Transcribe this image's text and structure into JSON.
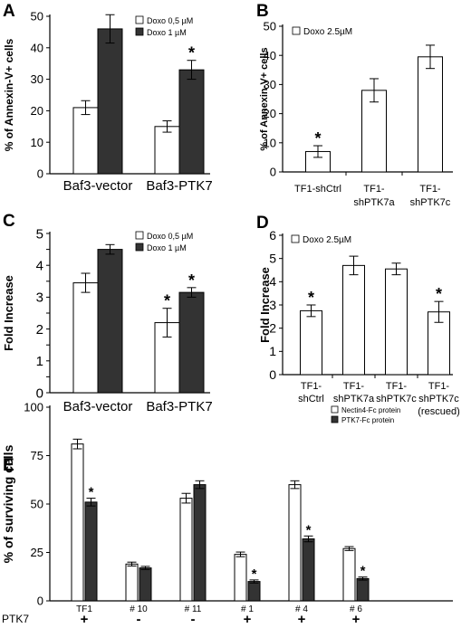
{
  "chart_data": [
    {
      "panel": "A",
      "type": "bar",
      "ylabel": "% of Annexin-V+ cells",
      "ylim": [
        0,
        50
      ],
      "yticks": [
        0,
        10,
        20,
        30,
        40,
        50
      ],
      "categories": [
        "Baf3-vector",
        "Baf3-PTK7"
      ],
      "series": [
        {
          "name": "Doxo 0,5 µM",
          "fill": "#ffffff",
          "values": [
            21,
            15
          ],
          "errors": [
            2.2,
            1.8
          ]
        },
        {
          "name": "Doxo 1 µM",
          "fill": "#333333",
          "values": [
            46,
            33
          ],
          "errors": [
            4.5,
            3
          ]
        }
      ],
      "stars": [
        {
          "series": 1,
          "index": 1,
          "text": "*"
        }
      ],
      "legend": "top-right"
    },
    {
      "panel": "B",
      "type": "bar",
      "ylabel": "% of Annexin-V+ cells",
      "ylim": [
        0,
        50
      ],
      "yticks": [
        0,
        10,
        20,
        30,
        40,
        50
      ],
      "categories": [
        [
          "TF1-shCtrl"
        ],
        [
          "TF1-",
          "shPTK7a"
        ],
        [
          "TF1-",
          "shPTK7c"
        ]
      ],
      "series": [
        {
          "name": "Doxo 2.5µM",
          "fill": "#ffffff",
          "values": [
            7,
            28,
            39.5
          ],
          "errors": [
            2,
            4,
            4
          ]
        }
      ],
      "stars": [
        {
          "series": 0,
          "index": 0,
          "text": "*"
        }
      ],
      "legend": "top-left"
    },
    {
      "panel": "C",
      "type": "bar",
      "ylabel": "Fold Increase",
      "ylim": [
        0,
        5
      ],
      "yticks": [
        0,
        0.5,
        1,
        1.5,
        2,
        2.5,
        3,
        3.5,
        4,
        4.5,
        5
      ],
      "ytick_labels": [
        "0",
        "",
        "1",
        "",
        "2",
        "",
        "3",
        "",
        "4",
        "",
        "5"
      ],
      "categories": [
        "Baf3-vector",
        "Baf3-PTK7"
      ],
      "series": [
        {
          "name": "Doxo 0,5 µM",
          "fill": "#ffffff",
          "values": [
            3.45,
            2.2
          ],
          "errors": [
            0.3,
            0.45
          ]
        },
        {
          "name": "Doxo 1 µM",
          "fill": "#333333",
          "values": [
            4.5,
            3.15
          ],
          "errors": [
            0.15,
            0.15
          ]
        }
      ],
      "stars": [
        {
          "series": 0,
          "index": 1,
          "text": "*"
        },
        {
          "series": 1,
          "index": 1,
          "text": "*"
        }
      ],
      "legend": "top-right"
    },
    {
      "panel": "D",
      "type": "bar",
      "ylabel": "Fold Increase",
      "ylim": [
        0,
        6
      ],
      "yticks": [
        0,
        1,
        2,
        3,
        4,
        5,
        6
      ],
      "categories": [
        [
          "TF1-",
          "shCtrl"
        ],
        [
          "TF1-",
          "shPTK7a"
        ],
        [
          "TF1-",
          "shPTK7c"
        ],
        [
          "TF1-",
          "shPTK7c",
          "(rescued)"
        ]
      ],
      "series": [
        {
          "name": "Doxo 2.5µM",
          "fill": "#ffffff",
          "values": [
            2.75,
            4.7,
            4.55,
            2.7
          ],
          "errors": [
            0.25,
            0.4,
            0.25,
            0.45
          ]
        }
      ],
      "stars": [
        {
          "series": 0,
          "index": 0,
          "text": "*"
        },
        {
          "series": 0,
          "index": 3,
          "text": "*"
        }
      ],
      "legend": "top-left"
    },
    {
      "panel": "E",
      "type": "bar",
      "ylabel": "% of surviving cells",
      "ylim": [
        0,
        100
      ],
      "yticks": [
        0,
        25,
        50,
        75,
        100
      ],
      "categories": [
        "TF1",
        "# 10",
        "# 11",
        "# 1",
        "# 4",
        "# 6"
      ],
      "row_label": "PTK7",
      "row_values": [
        "+",
        "-",
        "-",
        "+",
        "+",
        "+"
      ],
      "series": [
        {
          "name": "Nectin4-Fc protein",
          "fill": "#ffffff",
          "values": [
            81,
            19,
            53,
            24,
            60,
            27
          ],
          "errors": [
            2.5,
            1,
            2.5,
            1.2,
            2,
            1
          ]
        },
        {
          "name": "PTK7-Fc protein",
          "fill": "#333333",
          "values": [
            51,
            17,
            60,
            10,
            32,
            11.5
          ],
          "errors": [
            2,
            0.8,
            2,
            0.8,
            1.5,
            0.8
          ]
        }
      ],
      "stars": [
        {
          "series": 1,
          "index": 0,
          "text": "*"
        },
        {
          "series": 1,
          "index": 3,
          "text": "*"
        },
        {
          "series": 1,
          "index": 4,
          "text": "*"
        },
        {
          "series": 1,
          "index": 5,
          "text": "*"
        }
      ],
      "legend": "top-right"
    }
  ]
}
